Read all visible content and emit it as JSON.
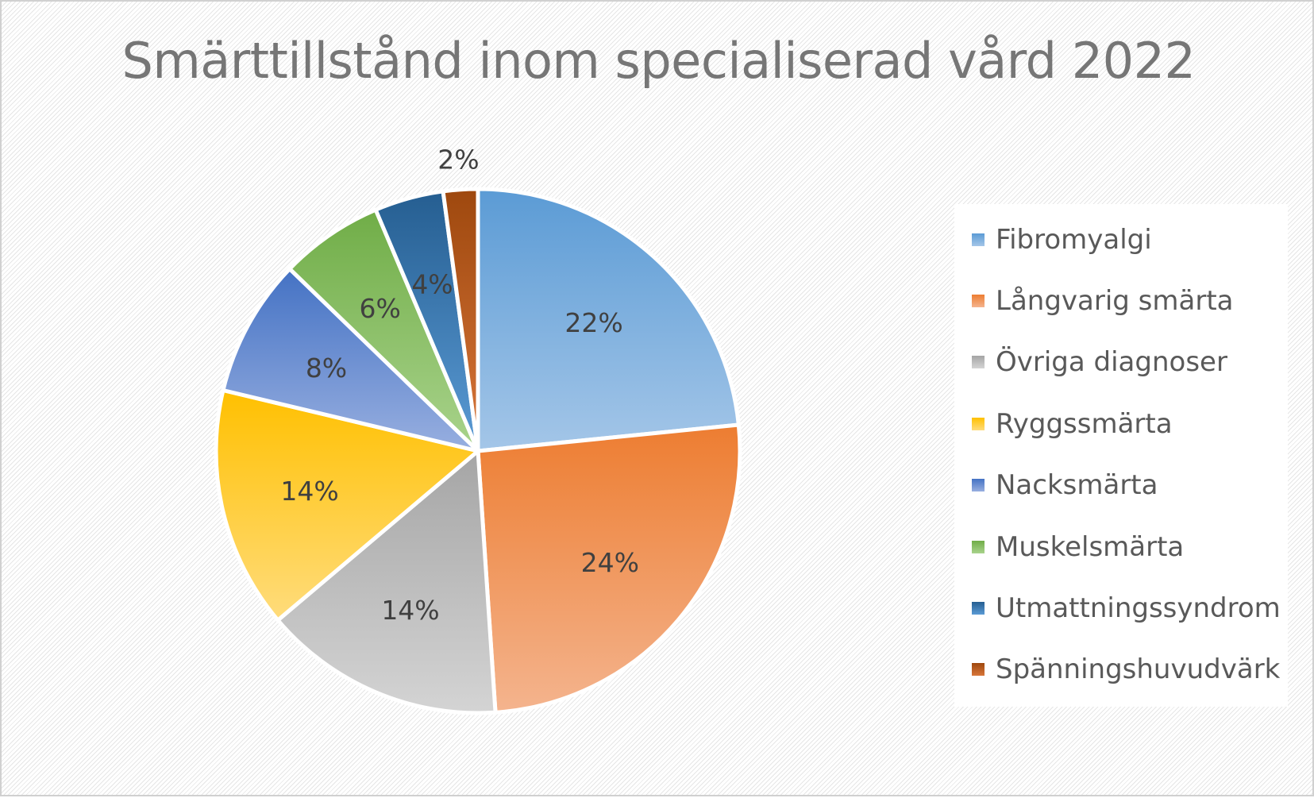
{
  "chart_data": {
    "type": "pie",
    "title": "Smärttillstånd inom specialiserad vård 2022",
    "legend_position": "right",
    "categories": [
      "Fibromyalgi",
      "Långvarig smärta",
      "Övriga diagnoser",
      "Ryggssmärta",
      "Nacksmärta",
      "Muskelsmärta",
      "Utmattningssyndrom",
      "Spänningshuvudvärk"
    ],
    "values": [
      22,
      24,
      14,
      14,
      8,
      6,
      4,
      2
    ],
    "data_labels": [
      "22%",
      "24%",
      "14%",
      "14%",
      "8%",
      "6%",
      "4%",
      "2%"
    ],
    "colors": [
      [
        "#5b9bd5",
        "#a4c6e8"
      ],
      [
        "#ed7d31",
        "#f4b48e"
      ],
      [
        "#a5a5a5",
        "#d4d4d4"
      ],
      [
        "#ffc000",
        "#ffdc7c"
      ],
      [
        "#4472c4",
        "#98afe0"
      ],
      [
        "#70ad47",
        "#a9d38c"
      ],
      [
        "#255e91",
        "#5b9bd5"
      ],
      [
        "#9e480e",
        "#d8763a"
      ]
    ]
  }
}
